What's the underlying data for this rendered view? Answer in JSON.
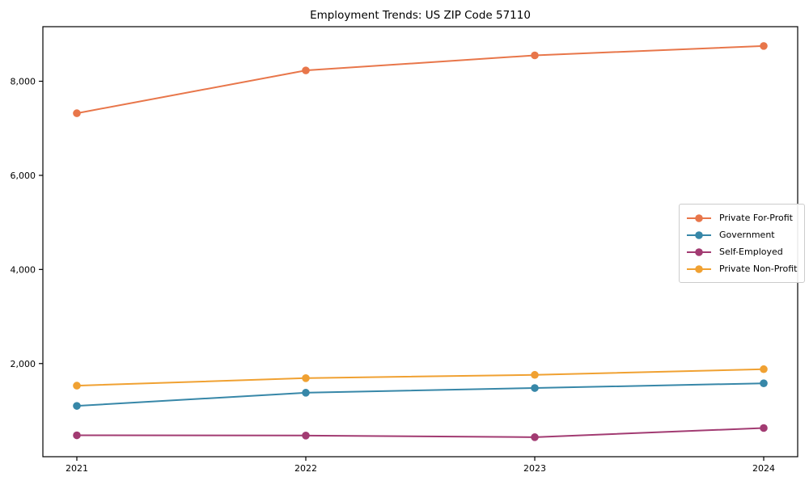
{
  "chart_data": {
    "type": "line",
    "title": "Employment Trends: US ZIP Code 57110",
    "x_tick_labels": [
      "2021",
      "2022",
      "2023",
      "2024"
    ],
    "y_ticks": [
      2000,
      4000,
      6000,
      8000
    ],
    "y_tick_labels": [
      "2,000",
      "4,000",
      "6,000",
      "8,000"
    ],
    "ylim": [
      20,
      9160
    ],
    "grid": false,
    "legend_position": "center-right",
    "axis_color": "#000000",
    "series": [
      {
        "name": "Private For-Profit",
        "color": "#E8764A",
        "values": [
          7320,
          8230,
          8550,
          8750
        ]
      },
      {
        "name": "Government",
        "color": "#3787A8",
        "values": [
          1100,
          1380,
          1480,
          1580
        ]
      },
      {
        "name": "Self-Employed",
        "color": "#A23B72",
        "values": [
          475,
          470,
          435,
          630
        ]
      },
      {
        "name": "Private Non-Profit",
        "color": "#F0A132",
        "values": [
          1530,
          1690,
          1760,
          1880
        ]
      }
    ]
  }
}
